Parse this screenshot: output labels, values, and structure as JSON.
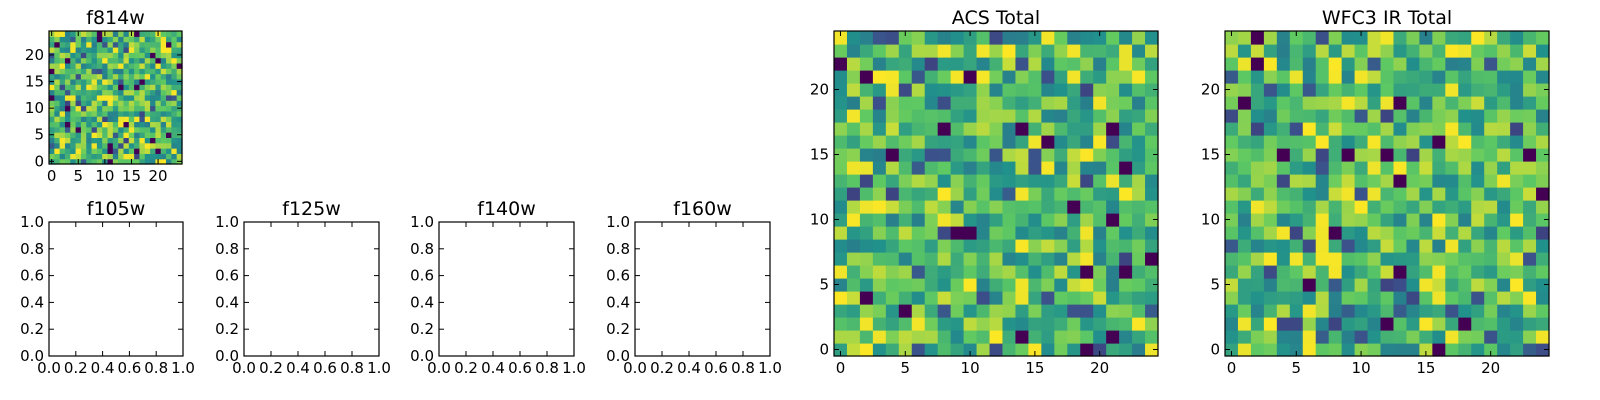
{
  "figure": {
    "colormap": "viridis",
    "frame_color": "#000000",
    "background": "#ffffff"
  },
  "chart_data": [
    {
      "id": "f814w",
      "type": "heatmap",
      "title": "f814w",
      "size": 25,
      "xticks": [
        "0",
        "5",
        "10",
        "15",
        "20"
      ],
      "yticks": [
        "0",
        "5",
        "10",
        "15",
        "20"
      ],
      "seed": 17,
      "vmin": 0.0,
      "vmax": 1.0
    },
    {
      "id": "f105w",
      "type": "heatmap",
      "title": "f105w",
      "empty": true,
      "xticks": [
        "0.0",
        "0.2",
        "0.4",
        "0.6",
        "0.8",
        "1.0"
      ],
      "yticks": [
        "0.0",
        "0.2",
        "0.4",
        "0.6",
        "0.8",
        "1.0"
      ]
    },
    {
      "id": "f125w",
      "type": "heatmap",
      "title": "f125w",
      "empty": true,
      "xticks": [
        "0.0",
        "0.2",
        "0.4",
        "0.6",
        "0.8",
        "1.0"
      ],
      "yticks": [
        "0.0",
        "0.2",
        "0.4",
        "0.6",
        "0.8",
        "1.0"
      ]
    },
    {
      "id": "f140w",
      "type": "heatmap",
      "title": "f140w",
      "empty": true,
      "xticks": [
        "0.0",
        "0.2",
        "0.4",
        "0.6",
        "0.8",
        "1.0"
      ],
      "yticks": [
        "0.0",
        "0.2",
        "0.4",
        "0.6",
        "0.8",
        "1.0"
      ]
    },
    {
      "id": "f160w",
      "type": "heatmap",
      "title": "f160w",
      "empty": true,
      "xticks": [
        "0.0",
        "0.2",
        "0.4",
        "0.6",
        "0.8",
        "1.0"
      ],
      "yticks": [
        "0.0",
        "0.2",
        "0.4",
        "0.6",
        "0.8",
        "1.0"
      ]
    },
    {
      "id": "acs",
      "type": "heatmap",
      "title": "ACS Total",
      "size": 25,
      "xticks": [
        "0",
        "5",
        "10",
        "15",
        "20"
      ],
      "yticks": [
        "0",
        "5",
        "10",
        "15",
        "20"
      ],
      "seed": 101,
      "vmin": 0.0,
      "vmax": 1.0
    },
    {
      "id": "wfc3",
      "type": "heatmap",
      "title": "WFC3 IR Total",
      "size": 25,
      "xticks": [
        "0",
        "5",
        "10",
        "15",
        "20"
      ],
      "yticks": [
        "0",
        "5",
        "10",
        "15",
        "20"
      ],
      "seed": 202,
      "vmin": 0.0,
      "vmax": 1.0
    }
  ]
}
